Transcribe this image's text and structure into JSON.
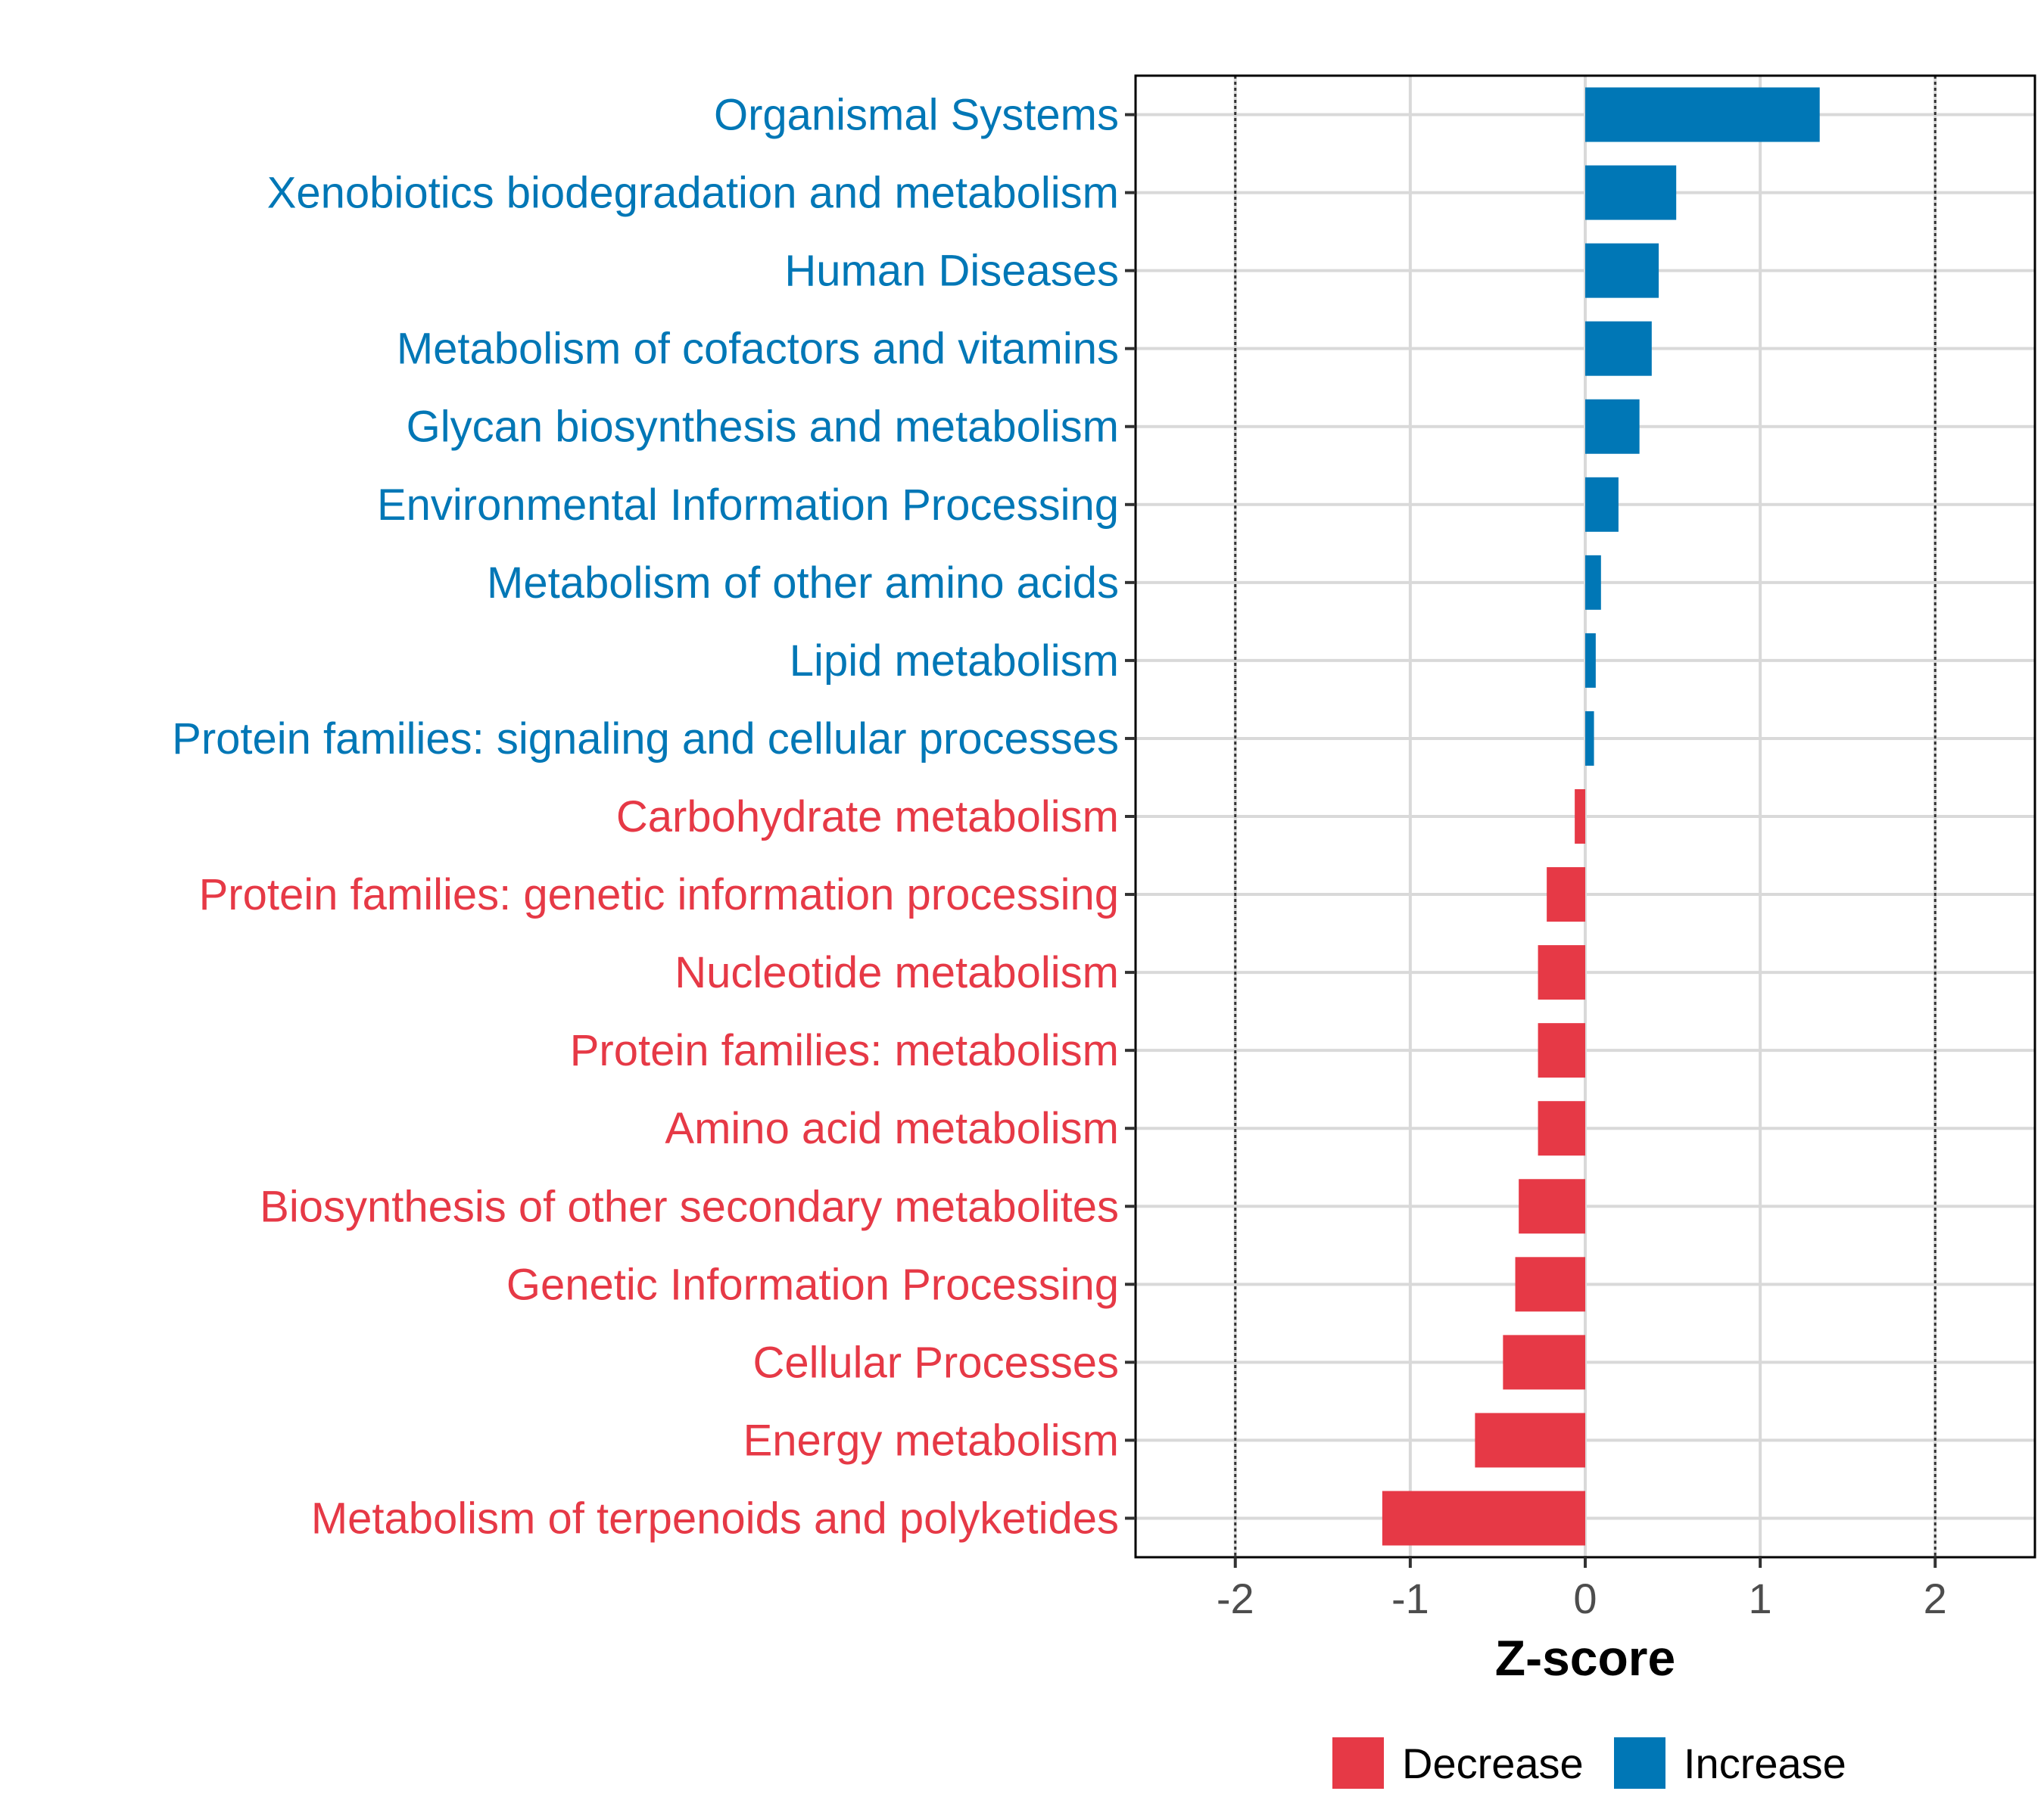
{
  "chart_data": {
    "type": "bar",
    "orientation": "horizontal",
    "categories": [
      "Organismal Systems",
      "Xenobiotics biodegradation and metabolism",
      "Human Diseases",
      "Metabolism of cofactors and vitamins",
      "Glycan biosynthesis and metabolism",
      "Environmental Information Processing",
      "Metabolism of other amino acids",
      "Lipid metabolism",
      "Protein families: signaling and cellular processes",
      "Carbohydrate metabolism",
      "Protein families: genetic information processing",
      "Nucleotide metabolism",
      "Protein families: metabolism",
      "Amino acid metabolism",
      "Biosynthesis of other secondary metabolites",
      "Genetic Information Processing",
      "Cellular Processes",
      "Energy metabolism",
      "Metabolism of terpenoids and polyketides"
    ],
    "values": [
      1.34,
      0.52,
      0.42,
      0.38,
      0.31,
      0.19,
      0.09,
      0.06,
      0.05,
      -0.06,
      -0.22,
      -0.27,
      -0.27,
      -0.27,
      -0.38,
      -0.4,
      -0.47,
      -0.63,
      -1.16
    ],
    "groups": [
      "Increase",
      "Increase",
      "Increase",
      "Increase",
      "Increase",
      "Increase",
      "Increase",
      "Increase",
      "Increase",
      "Decrease",
      "Decrease",
      "Decrease",
      "Decrease",
      "Decrease",
      "Decrease",
      "Decrease",
      "Decrease",
      "Decrease",
      "Decrease"
    ],
    "xlabel": "Z-score",
    "xlim": [
      -2.57,
      2.57
    ],
    "xticks": [
      -2,
      -1,
      0,
      1,
      2
    ],
    "xtick_labels": [
      "-2",
      "-1",
      "0",
      "1",
      "2"
    ],
    "reference_lines": [
      -2,
      2
    ],
    "grid": true,
    "legend": {
      "position": "bottom",
      "entries": [
        {
          "label": "Decrease",
          "color": "#e63946"
        },
        {
          "label": "Increase",
          "color": "#0077b6"
        }
      ]
    },
    "colors": {
      "Increase": "#0077b6",
      "Decrease": "#e63946"
    }
  }
}
